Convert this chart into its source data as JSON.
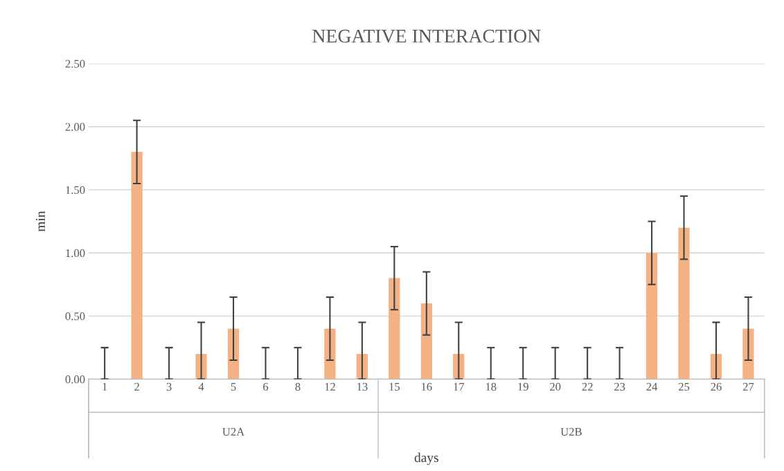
{
  "chart_data": {
    "type": "bar",
    "title": "NEGATIVE INTERACTION",
    "xlabel": "days",
    "ylabel": "min",
    "categories": [
      "1",
      "2",
      "3",
      "4",
      "5",
      "6",
      "8",
      "12",
      "13",
      "15",
      "16",
      "17",
      "18",
      "19",
      "20",
      "22",
      "23",
      "24",
      "25",
      "26",
      "27"
    ],
    "values": [
      0,
      1.8,
      0,
      0.2,
      0.4,
      0,
      0,
      0.4,
      0.2,
      0.8,
      0.6,
      0.2,
      0,
      0,
      0,
      0,
      0,
      1.0,
      1.2,
      0.2,
      0.4
    ],
    "errors": [
      [
        0,
        0.25
      ],
      0.25,
      [
        0,
        0.25
      ],
      [
        0,
        0.45
      ],
      0.25,
      [
        0,
        0.25
      ],
      [
        0,
        0.25
      ],
      0.25,
      [
        0,
        0.45
      ],
      0.25,
      0.25,
      [
        0,
        0.45
      ],
      [
        0,
        0.25
      ],
      [
        0,
        0.25
      ],
      [
        0,
        0.25
      ],
      [
        0,
        0.25
      ],
      [
        0,
        0.25
      ],
      0.25,
      0.25,
      [
        0,
        0.45
      ],
      0.25
    ],
    "color": "#f4b183",
    "ylim": [
      0,
      2.5
    ],
    "yticks": [
      {
        "value": 0,
        "label": "0.00"
      },
      {
        "value": 0.5,
        "label": "0.50"
      },
      {
        "value": 1,
        "label": "1.00"
      },
      {
        "value": 1.5,
        "label": "1.50"
      },
      {
        "value": 2,
        "label": "2.00"
      },
      {
        "value": 2.5,
        "label": "2.50"
      }
    ],
    "grid": "y",
    "annotations": [
      "U2A",
      "U2B"
    ]
  }
}
